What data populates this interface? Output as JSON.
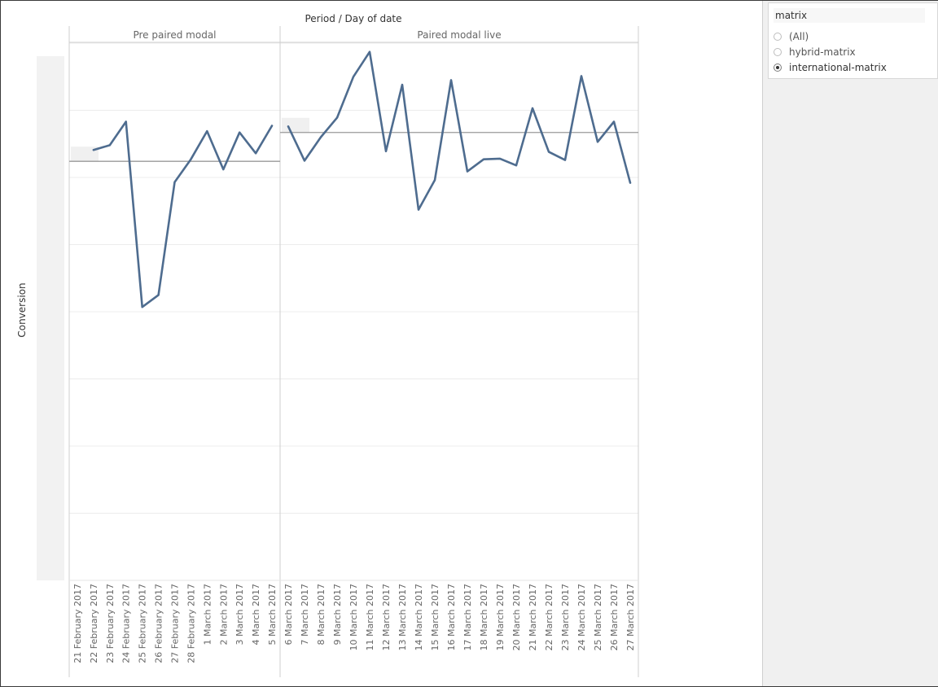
{
  "filter": {
    "title": "matrix",
    "options": [
      {
        "label": "(All)",
        "selected": false
      },
      {
        "label": "hybrid-matrix",
        "selected": false
      },
      {
        "label": "international-matrix",
        "selected": true
      }
    ]
  },
  "chart_data": {
    "type": "line",
    "title": "Period / Day of date",
    "ylabel": "Conversion",
    "ylim": [
      0,
      80
    ],
    "grid": true,
    "colors": {
      "line": "#4e6c8f",
      "reference": "#9a9a9a",
      "grid": "#ececec"
    },
    "panels": [
      {
        "name": "Pre paired modal",
        "categories": [
          "21 February 2017",
          "22 February 2017",
          "23 February 2017",
          "24 February 2017",
          "25 February 2017",
          "26 February 2017",
          "27 February 2017",
          "28 February 2017",
          "1 March 2017",
          "2 March 2017",
          "3 March 2017",
          "4 March 2017",
          "5 March 2017"
        ],
        "values": [
          null,
          64.1,
          64.8,
          68.3,
          40.7,
          42.5,
          59.3,
          62.7,
          66.9,
          61.2,
          66.7,
          63.6,
          67.7
        ],
        "reference": 62.4
      },
      {
        "name": "Paired modal live",
        "categories": [
          "6 March 2017",
          "7 March 2017",
          "8 March 2017",
          "9 March 2017",
          "10 March 2017",
          "11 March 2017",
          "12 March 2017",
          "13 March 2017",
          "14 March 2017",
          "15 March 2017",
          "16 March 2017",
          "17 March 2017",
          "18 March 2017",
          "19 March 2017",
          "20 March 2017",
          "21 March 2017",
          "22 March 2017",
          "23 March 2017",
          "24 March 2017",
          "25 March 2017",
          "26 March 2017",
          "27 March 2017"
        ],
        "values": [
          67.6,
          62.5,
          66.0,
          68.9,
          75.0,
          78.7,
          63.9,
          73.8,
          55.2,
          59.6,
          74.5,
          60.9,
          62.7,
          62.8,
          61.8,
          70.3,
          63.8,
          62.6,
          75.1,
          65.3,
          68.3,
          59.2
        ],
        "reference": 66.7
      }
    ]
  }
}
